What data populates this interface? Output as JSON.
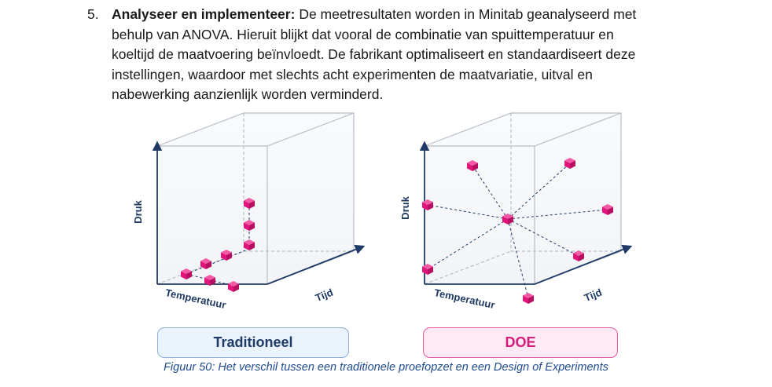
{
  "paragraph": {
    "number": "5.",
    "bold_lead": "Analyseer en implementeer:",
    "lines": [
      "De meetresultaten worden in Minitab geanalyseerd met",
      "behulp van ANOVA. Hieruit blijkt dat vooral de combinatie van spuittemperatuur en",
      "koeltijd de maatvoering beïnvloedt. De fabrikant optimaliseert en standaardiseert deze",
      "instellingen, waardoor met slechts acht experimenten de maatvariatie, uitval en",
      "nabewerking aanzienlijk worden verminderd."
    ]
  },
  "figure": {
    "left_panel": {
      "label": "Traditioneel",
      "axis_y": "Druk",
      "axis_x": "Temperatuur",
      "axis_z": "Tijd"
    },
    "right_panel": {
      "label": "DOE",
      "axis_y": "Druk",
      "axis_x": "Temperatuur",
      "axis_z": "Tijd"
    },
    "caption": "Figuur 50: Het verschil tussen een traditionele proefopzet en een Design of Experiments",
    "colors": {
      "cube_pink": "#e0147a",
      "line_navy": "#1f3a66",
      "trad_accent": "#8ab0d9",
      "doe_accent": "#e2579e"
    }
  }
}
